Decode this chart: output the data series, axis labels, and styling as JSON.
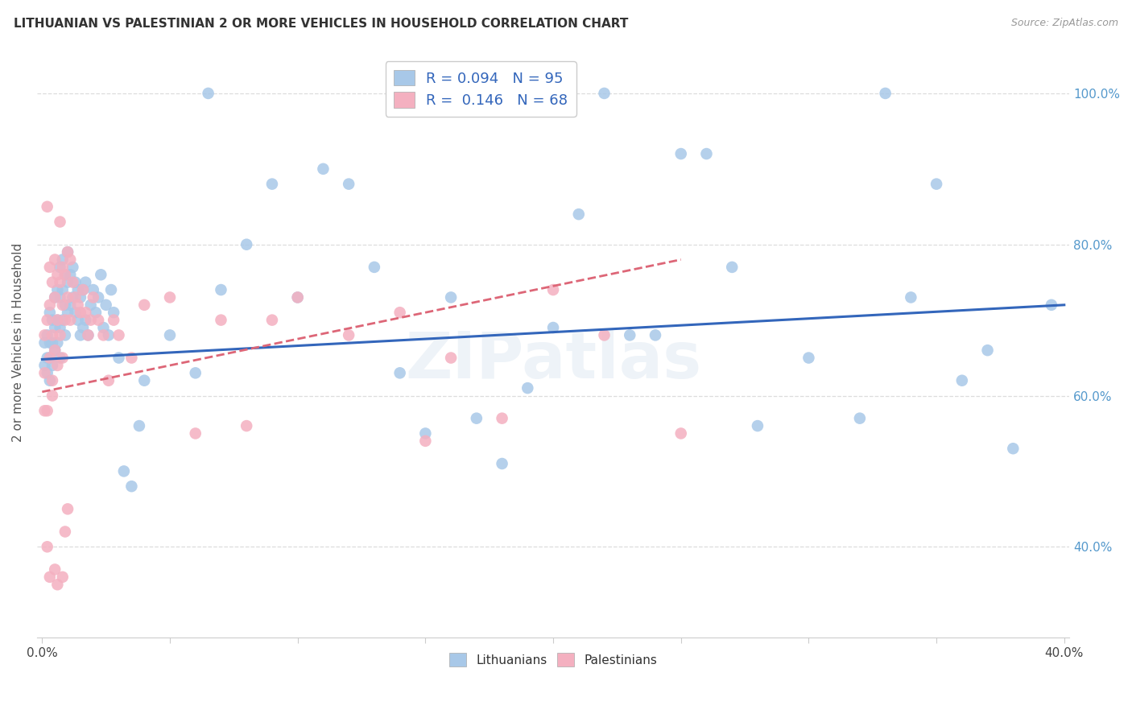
{
  "title": "LITHUANIAN VS PALESTINIAN 2 OR MORE VEHICLES IN HOUSEHOLD CORRELATION CHART",
  "source": "Source: ZipAtlas.com",
  "ylabel": "2 or more Vehicles in Household",
  "xlabel": "",
  "xlim": [
    -0.002,
    0.402
  ],
  "ylim": [
    0.28,
    1.06
  ],
  "xticks": [
    0.0,
    0.05,
    0.1,
    0.15,
    0.2,
    0.25,
    0.3,
    0.35,
    0.4
  ],
  "yticks": [
    0.4,
    0.6,
    0.8,
    1.0
  ],
  "ytick_labels": [
    "40.0%",
    "60.0%",
    "80.0%",
    "100.0%"
  ],
  "xtick_labels": [
    "0.0%",
    "",
    "",
    "",
    "",
    "",
    "",
    "",
    "40.0%"
  ],
  "blue_color": "#a8c8e8",
  "pink_color": "#f4b0c0",
  "blue_line_color": "#3366bb",
  "pink_line_color": "#dd6677",
  "watermark": "ZIPatlas",
  "blue_r": 0.094,
  "blue_n": 95,
  "pink_r": 0.146,
  "pink_n": 68,
  "blue_intercept": 0.648,
  "blue_slope": 0.18,
  "pink_intercept": 0.605,
  "pink_slope": 0.7,
  "blue_scatter_x": [
    0.001,
    0.001,
    0.002,
    0.002,
    0.002,
    0.003,
    0.003,
    0.003,
    0.003,
    0.004,
    0.004,
    0.004,
    0.005,
    0.005,
    0.005,
    0.006,
    0.006,
    0.006,
    0.007,
    0.007,
    0.007,
    0.007,
    0.008,
    0.008,
    0.008,
    0.009,
    0.009,
    0.009,
    0.01,
    0.01,
    0.01,
    0.011,
    0.011,
    0.012,
    0.012,
    0.013,
    0.013,
    0.014,
    0.014,
    0.015,
    0.015,
    0.016,
    0.016,
    0.017,
    0.017,
    0.018,
    0.019,
    0.02,
    0.021,
    0.022,
    0.023,
    0.024,
    0.025,
    0.026,
    0.027,
    0.028,
    0.03,
    0.032,
    0.035,
    0.038,
    0.04,
    0.05,
    0.06,
    0.065,
    0.07,
    0.08,
    0.09,
    0.1,
    0.11,
    0.12,
    0.13,
    0.14,
    0.16,
    0.17,
    0.18,
    0.19,
    0.2,
    0.21,
    0.22,
    0.24,
    0.26,
    0.28,
    0.3,
    0.32,
    0.34,
    0.36,
    0.38,
    0.395,
    0.27,
    0.15,
    0.23,
    0.25,
    0.33,
    0.35,
    0.37
  ],
  "blue_scatter_y": [
    0.67,
    0.64,
    0.68,
    0.65,
    0.63,
    0.71,
    0.67,
    0.65,
    0.62,
    0.7,
    0.67,
    0.64,
    0.73,
    0.69,
    0.66,
    0.74,
    0.7,
    0.67,
    0.77,
    0.73,
    0.69,
    0.65,
    0.78,
    0.74,
    0.7,
    0.76,
    0.72,
    0.68,
    0.79,
    0.75,
    0.71,
    0.76,
    0.72,
    0.77,
    0.73,
    0.75,
    0.71,
    0.74,
    0.7,
    0.73,
    0.68,
    0.74,
    0.69,
    0.75,
    0.7,
    0.68,
    0.72,
    0.74,
    0.71,
    0.73,
    0.76,
    0.69,
    0.72,
    0.68,
    0.74,
    0.71,
    0.65,
    0.5,
    0.48,
    0.56,
    0.62,
    0.68,
    0.63,
    1.0,
    0.74,
    0.8,
    0.88,
    0.73,
    0.9,
    0.88,
    0.77,
    0.63,
    0.73,
    0.57,
    0.51,
    0.61,
    0.69,
    0.84,
    1.0,
    0.68,
    0.92,
    0.56,
    0.65,
    0.57,
    0.73,
    0.62,
    0.53,
    0.72,
    0.77,
    0.55,
    0.68,
    0.92,
    1.0,
    0.88,
    0.66
  ],
  "pink_scatter_x": [
    0.001,
    0.001,
    0.001,
    0.002,
    0.002,
    0.002,
    0.003,
    0.003,
    0.003,
    0.004,
    0.004,
    0.004,
    0.005,
    0.005,
    0.005,
    0.006,
    0.006,
    0.006,
    0.007,
    0.007,
    0.008,
    0.008,
    0.008,
    0.009,
    0.009,
    0.01,
    0.01,
    0.011,
    0.011,
    0.012,
    0.013,
    0.014,
    0.015,
    0.016,
    0.017,
    0.018,
    0.019,
    0.02,
    0.022,
    0.024,
    0.026,
    0.028,
    0.03,
    0.035,
    0.04,
    0.05,
    0.06,
    0.07,
    0.08,
    0.09,
    0.1,
    0.12,
    0.14,
    0.15,
    0.16,
    0.18,
    0.2,
    0.22,
    0.25,
    0.005,
    0.002,
    0.003,
    0.004,
    0.006,
    0.007,
    0.008,
    0.009,
    0.01
  ],
  "pink_scatter_y": [
    0.68,
    0.63,
    0.58,
    0.85,
    0.7,
    0.58,
    0.77,
    0.72,
    0.65,
    0.75,
    0.68,
    0.62,
    0.78,
    0.73,
    0.66,
    0.76,
    0.7,
    0.64,
    0.75,
    0.68,
    0.77,
    0.72,
    0.65,
    0.76,
    0.7,
    0.79,
    0.73,
    0.78,
    0.7,
    0.75,
    0.73,
    0.72,
    0.71,
    0.74,
    0.71,
    0.68,
    0.7,
    0.73,
    0.7,
    0.68,
    0.62,
    0.7,
    0.68,
    0.65,
    0.72,
    0.73,
    0.55,
    0.7,
    0.56,
    0.7,
    0.73,
    0.68,
    0.71,
    0.54,
    0.65,
    0.57,
    0.74,
    0.68,
    0.55,
    0.37,
    0.4,
    0.36,
    0.6,
    0.35,
    0.83,
    0.36,
    0.42,
    0.45
  ]
}
